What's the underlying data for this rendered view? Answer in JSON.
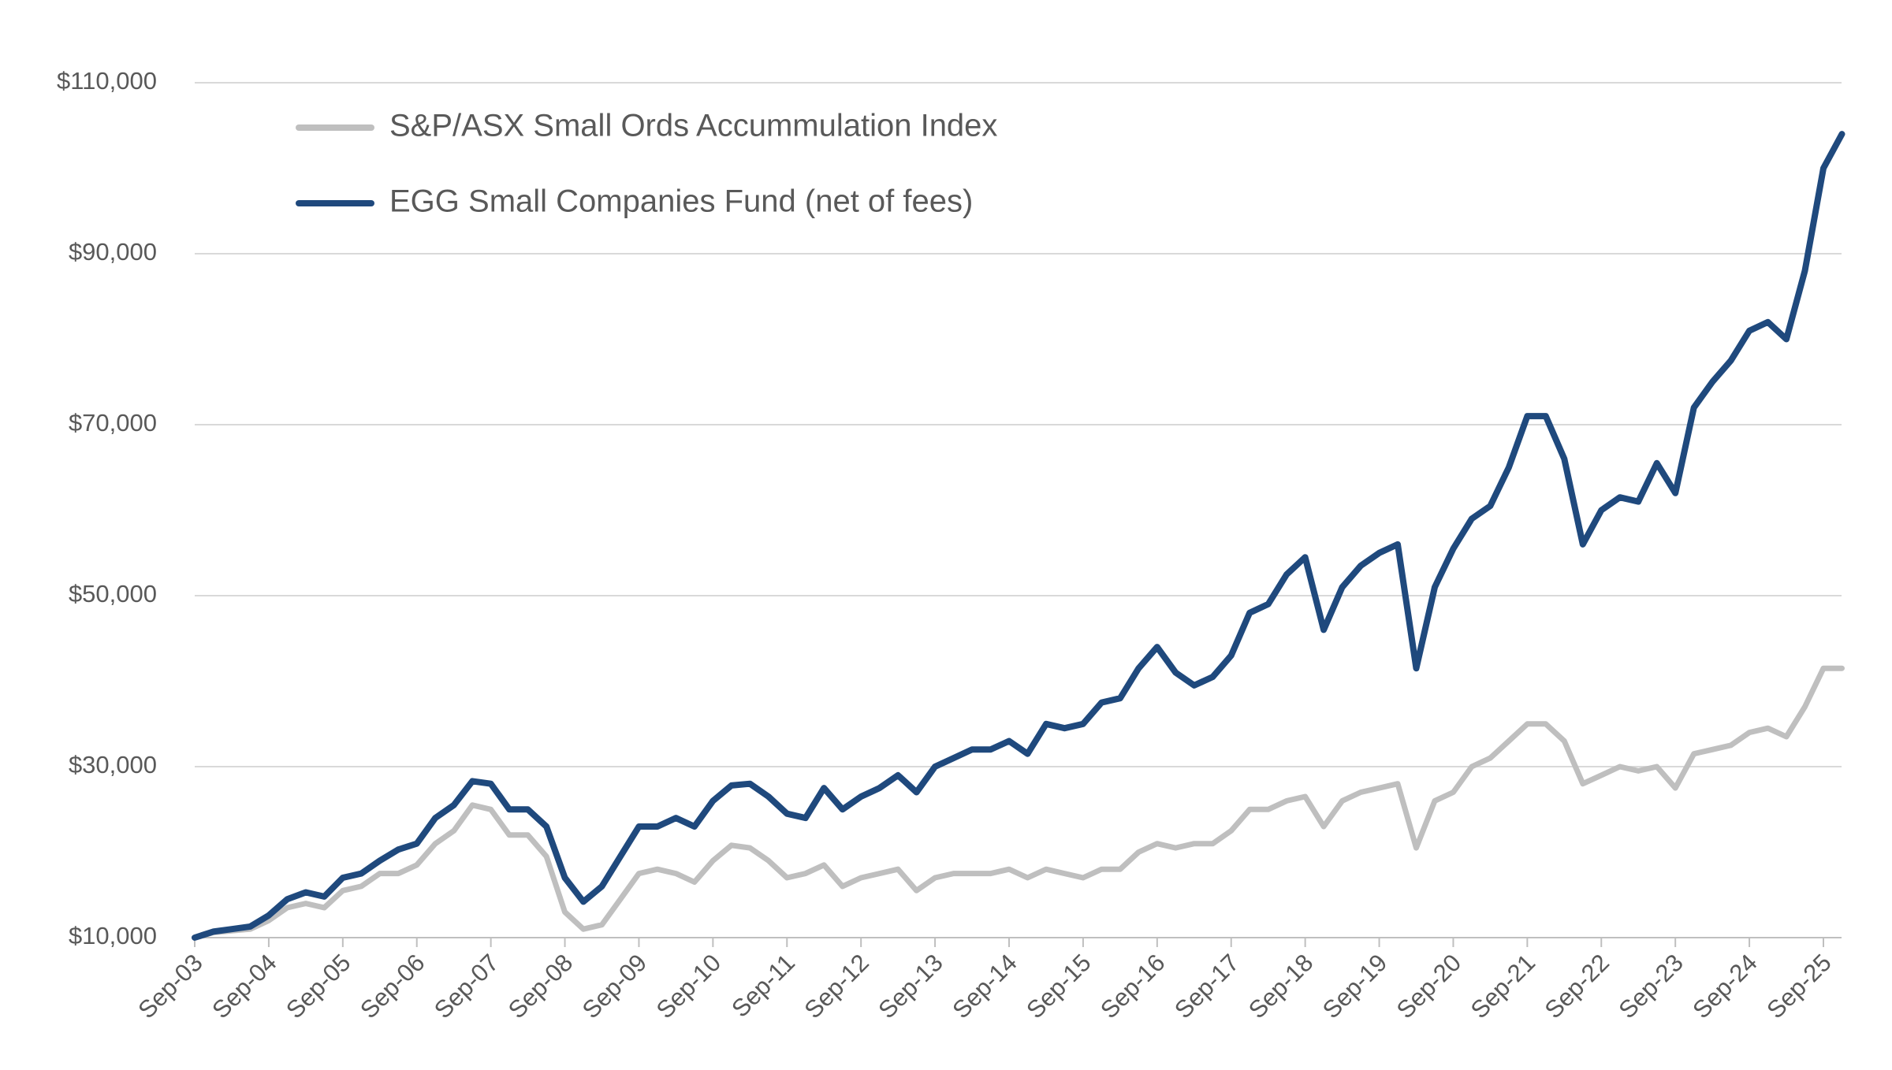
{
  "chart_data": {
    "type": "line",
    "categories": [
      "Sep-03",
      null,
      null,
      null,
      "Sep-04",
      null,
      null,
      null,
      "Sep-05",
      null,
      null,
      null,
      "Sep-06",
      null,
      null,
      null,
      "Sep-07",
      null,
      null,
      null,
      "Sep-08",
      null,
      null,
      null,
      "Sep-09",
      null,
      null,
      null,
      "Sep-10",
      null,
      null,
      null,
      "Sep-11",
      null,
      null,
      null,
      "Sep-12",
      null,
      null,
      null,
      "Sep-13",
      null,
      null,
      null,
      "Sep-14",
      null,
      null,
      null,
      "Sep-15",
      null,
      null,
      null,
      "Sep-16",
      null,
      null,
      null,
      "Sep-17",
      null,
      null,
      null,
      "Sep-18",
      null,
      null,
      null,
      "Sep-19",
      null,
      null,
      null,
      "Sep-20",
      null,
      null,
      null,
      "Sep-21",
      null,
      null,
      null,
      "Sep-22",
      null,
      null,
      null,
      "Sep-23",
      null,
      null,
      null,
      "Sep-24",
      null,
      null,
      null,
      "Sep-25",
      null
    ],
    "series": [
      {
        "name": "S&P/ASX Small Ords Accummulation Index",
        "color": "#bfbfbf",
        "values": [
          10000,
          10600,
          10800,
          11000,
          12000,
          13500,
          14000,
          13500,
          15500,
          16000,
          17500,
          17500,
          18500,
          21000,
          22500,
          25500,
          25000,
          22000,
          22000,
          19500,
          13000,
          11000,
          11500,
          14500,
          17500,
          18000,
          17500,
          16500,
          19000,
          20800,
          20500,
          19000,
          17000,
          17500,
          18500,
          16000,
          17000,
          17500,
          18000,
          15500,
          17000,
          17500,
          17500,
          17500,
          18000,
          17000,
          18000,
          17500,
          17000,
          18000,
          18000,
          20000,
          21000,
          20500,
          21000,
          21000,
          22500,
          25000,
          25000,
          26000,
          26500,
          23000,
          26000,
          27000,
          27500,
          28000,
          20500,
          26000,
          27000,
          30000,
          31000,
          33000,
          35000,
          35000,
          33000,
          28000,
          29000,
          30000,
          29500,
          30000,
          27500,
          31500,
          32000,
          32500,
          34000,
          34500,
          33500,
          37000,
          41500,
          41500
        ]
      },
      {
        "name": "EGG Small Companies Fund (net of fees)",
        "color": "#1f497d",
        "values": [
          10000,
          10700,
          11000,
          11300,
          12600,
          14500,
          15300,
          14800,
          17000,
          17500,
          19000,
          20300,
          21000,
          24000,
          25500,
          28300,
          28000,
          25000,
          25000,
          23000,
          17000,
          14200,
          16000,
          19500,
          23000,
          23000,
          24000,
          23000,
          26000,
          27800,
          28000,
          26500,
          24500,
          24000,
          27500,
          25000,
          26500,
          27500,
          29000,
          27000,
          30000,
          31000,
          32000,
          32000,
          33000,
          31500,
          35000,
          34500,
          35000,
          37500,
          38000,
          41500,
          44000,
          41000,
          39500,
          40500,
          43000,
          48000,
          49000,
          52500,
          54500,
          46000,
          51000,
          53500,
          55000,
          56000,
          41500,
          51000,
          55500,
          59000,
          60500,
          65000,
          71000,
          71000,
          66000,
          56000,
          60000,
          61500,
          61000,
          65500,
          62000,
          72000,
          75000,
          77500,
          81000,
          82000,
          80000,
          88000,
          100000,
          104000
        ]
      }
    ],
    "ylim": [
      10000,
      110000
    ],
    "yticks": [
      {
        "value": 10000,
        "label": "$10,000"
      },
      {
        "value": 30000,
        "label": "$30,000"
      },
      {
        "value": 50000,
        "label": "$50,000"
      },
      {
        "value": 70000,
        "label": "$70,000"
      },
      {
        "value": 90000,
        "label": "$90,000"
      },
      {
        "value": 110000,
        "label": "$110,000"
      }
    ],
    "grid": true,
    "legend": "top-left"
  }
}
